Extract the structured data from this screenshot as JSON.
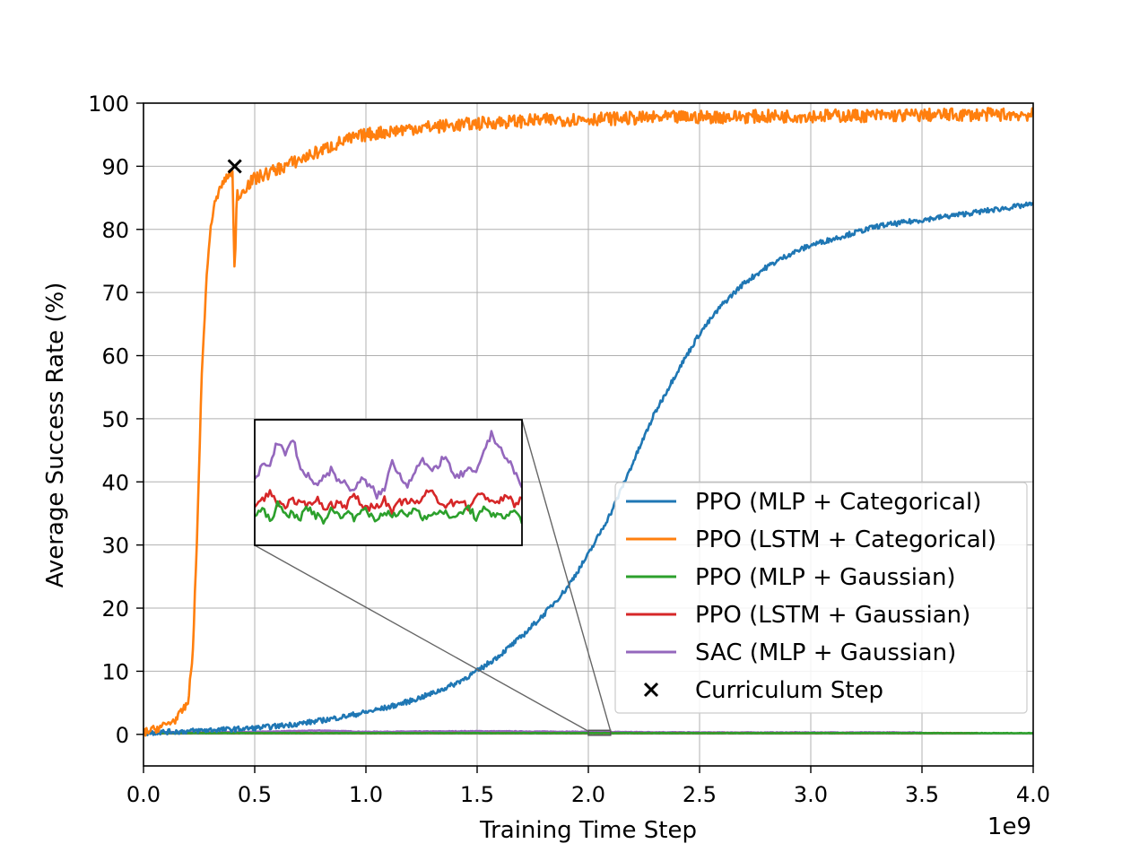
{
  "chart_data": {
    "type": "line",
    "title": "",
    "xlabel": "Training Time Step",
    "ylabel": "Average Success Rate (%)",
    "x_offset_label": "1e9",
    "xlim": [
      0.0,
      4.0
    ],
    "ylim": [
      -5,
      100
    ],
    "x_ticks": [
      "0.0",
      "0.5",
      "1.0",
      "1.5",
      "2.0",
      "2.5",
      "3.0",
      "3.5",
      "4.0"
    ],
    "y_ticks": [
      "0",
      "10",
      "20",
      "30",
      "40",
      "50",
      "60",
      "70",
      "80",
      "90",
      "100"
    ],
    "grid": true,
    "legend_position": "lower right",
    "series": [
      {
        "name": "PPO (MLP + Categorical)",
        "color": "#1f77b4",
        "x": [
          0.0,
          0.1,
          0.2,
          0.3,
          0.4,
          0.5,
          0.6,
          0.7,
          0.8,
          0.9,
          1.0,
          1.1,
          1.2,
          1.3,
          1.4,
          1.5,
          1.6,
          1.7,
          1.8,
          1.9,
          2.0,
          2.1,
          2.2,
          2.3,
          2.4,
          2.5,
          2.6,
          2.7,
          2.8,
          2.9,
          3.0,
          3.1,
          3.2,
          3.3,
          3.4,
          3.5,
          3.6,
          3.7,
          3.8,
          3.9,
          4.0
        ],
        "y": [
          0.2,
          0.4,
          0.5,
          0.7,
          0.8,
          1.0,
          1.3,
          1.7,
          2.2,
          2.8,
          3.5,
          4.3,
          5.3,
          6.5,
          8.0,
          10.0,
          12.5,
          15.5,
          19.0,
          23.0,
          28.5,
          35.0,
          43.0,
          51.0,
          57.5,
          63.5,
          68.0,
          71.5,
          74.0,
          76.0,
          77.5,
          78.5,
          79.5,
          80.5,
          81.0,
          81.5,
          82.0,
          82.5,
          83.0,
          83.5,
          84.0
        ]
      },
      {
        "name": "PPO (LSTM + Categorical)",
        "color": "#ff7f0e",
        "x": [
          0.0,
          0.05,
          0.1,
          0.15,
          0.2,
          0.22,
          0.24,
          0.26,
          0.28,
          0.3,
          0.32,
          0.35,
          0.38,
          0.4,
          0.41,
          0.42,
          0.43,
          0.45,
          0.5,
          0.6,
          0.7,
          0.8,
          0.9,
          1.0,
          1.1,
          1.2,
          1.4,
          1.6,
          1.8,
          2.0,
          2.2,
          2.5,
          2.8,
          3.0,
          3.2,
          3.5,
          3.8,
          4.0
        ],
        "y": [
          0.3,
          0.8,
          1.5,
          2.5,
          5.0,
          12.0,
          30.0,
          55.0,
          70.0,
          80.0,
          84.0,
          87.0,
          88.5,
          89.0,
          72.0,
          86.0,
          85.0,
          86.5,
          88.0,
          89.5,
          91.0,
          92.5,
          94.0,
          95.0,
          95.5,
          96.0,
          96.5,
          97.0,
          97.3,
          97.5,
          97.6,
          97.8,
          97.9,
          98.0,
          98.0,
          98.1,
          98.2,
          98.2
        ]
      },
      {
        "name": "PPO (MLP + Gaussian)",
        "color": "#2ca02c",
        "x": [
          0.0,
          4.0
        ],
        "y": [
          0.2,
          0.2
        ]
      },
      {
        "name": "PPO (LSTM + Gaussian)",
        "color": "#d62728",
        "x": [
          0.0,
          3.75
        ],
        "y": [
          0.2,
          0.2
        ]
      },
      {
        "name": "SAC (MLP + Gaussian)",
        "color": "#9467bd",
        "x": [
          0.0,
          0.5,
          0.8,
          1.0,
          1.5,
          2.0,
          2.5,
          3.0,
          3.5
        ],
        "y": [
          0.3,
          0.4,
          0.6,
          0.4,
          0.5,
          0.4,
          0.3,
          0.3,
          0.3
        ]
      }
    ],
    "markers": [
      {
        "name": "Curriculum Step",
        "x": 0.41,
        "y": 90,
        "symbol": "x",
        "color": "#000000"
      }
    ],
    "inset": {
      "xlim": [
        2.0,
        2.1
      ],
      "ylim": [
        0.0,
        0.5
      ],
      "series": [
        {
          "name": "SAC (MLP + Gaussian)",
          "color": "#9467bd",
          "y": [
            0.25,
            0.32,
            0.33,
            0.41,
            0.36,
            0.43,
            0.3,
            0.28,
            0.24,
            0.27,
            0.3,
            0.26,
            0.24,
            0.22,
            0.26,
            0.24,
            0.2,
            0.22,
            0.34,
            0.28,
            0.24,
            0.3,
            0.34,
            0.29,
            0.32,
            0.36,
            0.27,
            0.28,
            0.3,
            0.28,
            0.38,
            0.44,
            0.4,
            0.34,
            0.3,
            0.22
          ]
        },
        {
          "name": "PPO (LSTM + Gaussian)",
          "color": "#d62728",
          "y": [
            0.16,
            0.18,
            0.21,
            0.17,
            0.16,
            0.18,
            0.16,
            0.16,
            0.19,
            0.15,
            0.16,
            0.17,
            0.16,
            0.2,
            0.16,
            0.15,
            0.16,
            0.18,
            0.13,
            0.17,
            0.18,
            0.16,
            0.19,
            0.22,
            0.18,
            0.16,
            0.17,
            0.18,
            0.15,
            0.19,
            0.2,
            0.18,
            0.17,
            0.2,
            0.16,
            0.19
          ]
        },
        {
          "name": "PPO (MLP + Gaussian)",
          "color": "#2ca02c",
          "y": [
            0.12,
            0.14,
            0.1,
            0.16,
            0.12,
            0.13,
            0.11,
            0.15,
            0.12,
            0.1,
            0.14,
            0.12,
            0.13,
            0.11,
            0.15,
            0.12,
            0.1,
            0.14,
            0.11,
            0.13,
            0.12,
            0.15,
            0.11,
            0.13,
            0.12,
            0.14,
            0.1,
            0.13,
            0.15,
            0.11,
            0.14,
            0.12,
            0.13,
            0.11,
            0.14,
            0.1
          ]
        }
      ]
    }
  }
}
